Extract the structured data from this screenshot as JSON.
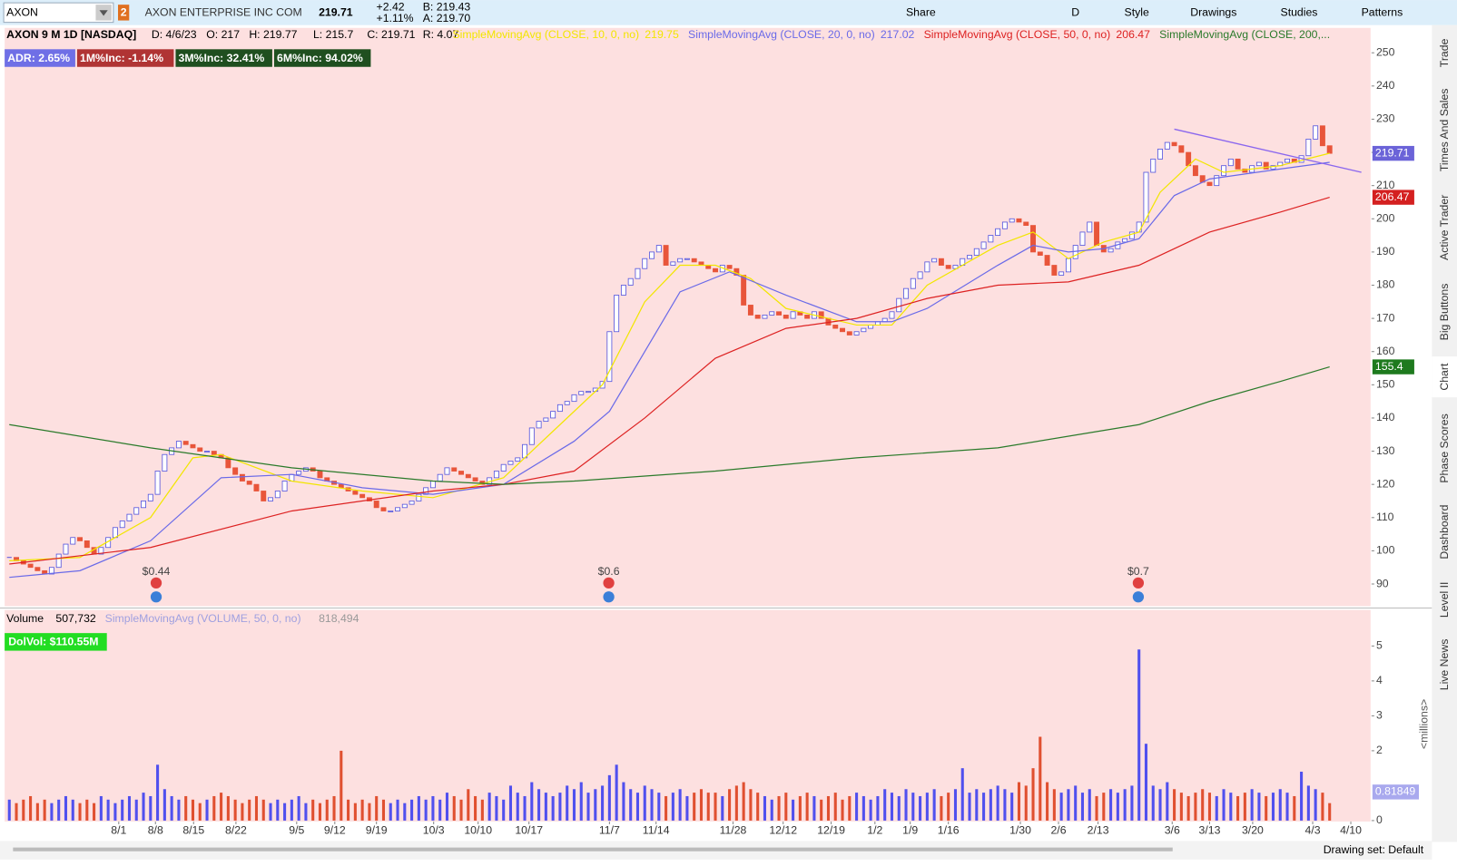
{
  "toolbar": {
    "symbol": "AXON",
    "link": "2",
    "company": "AXON ENTERPRISE INC COM",
    "last": "219.71",
    "change": "+2.42",
    "change_pct": "+1.11%",
    "bid": "B: 219.43",
    "ask": "A: 219.70",
    "buttons": [
      "Share",
      "D",
      "Style",
      "Drawings",
      "Studies",
      "Patterns"
    ]
  },
  "sidebar_tabs": [
    "Trade",
    "Times And Sales",
    "Active Trader",
    "Big Buttons",
    "Chart",
    "Phase Scores",
    "Dashboard",
    "Level II",
    "Live News"
  ],
  "price_header": {
    "title": "AXON 9 M 1D [NASDAQ]",
    "date": "D: 4/6/23",
    "open": "O: 217",
    "high": "H: 219.77",
    "low": "L: 215.7",
    "close": "C: 219.71",
    "range": "R: 4.07",
    "study_values": [
      "219.75",
      "217.02",
      "206.47"
    ]
  },
  "badges": [
    {
      "text": "ADR: 2.65%",
      "color": "#6f6fe6"
    },
    {
      "text": "1M%Inc: -1.14%",
      "color": "#b03434"
    },
    {
      "text": "3M%Inc: 32.41%",
      "color": "#1f4f1f"
    },
    {
      "text": "6M%Inc: 94.02%",
      "color": "#1f4f1f"
    }
  ],
  "volume_header": {
    "title": "Volume",
    "value": "507,732",
    "study": "SimpleMovingAvg (VOLUME, 50, 0, no)",
    "study_value": "818,494",
    "dolvol": "DolVol: $110.55M"
  },
  "status": "Drawing set: Default",
  "chart_data": [
    {
      "type": "candlestick",
      "closes": [
        98,
        97,
        96,
        95,
        94,
        93,
        95,
        99,
        102,
        104,
        103,
        101,
        99,
        101,
        104,
        107,
        109,
        111,
        113,
        115,
        117,
        124,
        129,
        131,
        133,
        132,
        131,
        130,
        130,
        129,
        128,
        125,
        123,
        121,
        120,
        118,
        115,
        116,
        118,
        121,
        123,
        124,
        125,
        124,
        122,
        121,
        120,
        119,
        118,
        117,
        116,
        115,
        113,
        112,
        112,
        113,
        114,
        115,
        117,
        119,
        121,
        123,
        125,
        124,
        123,
        122,
        121,
        120,
        122,
        124,
        126,
        127,
        128,
        132,
        137,
        139,
        140,
        142,
        144,
        145,
        147,
        148,
        148,
        149,
        151,
        166,
        177,
        180,
        182,
        185,
        188,
        190,
        192,
        186,
        187,
        188,
        188,
        187,
        186,
        185,
        184,
        186,
        185,
        183,
        174,
        171,
        170,
        171,
        172,
        171,
        170,
        172,
        171,
        170,
        172,
        170,
        168,
        167,
        166,
        165,
        166,
        167,
        168,
        169,
        170,
        172,
        176,
        179,
        182,
        184,
        187,
        188,
        186,
        185,
        186,
        188,
        189,
        191,
        193,
        195,
        197,
        199,
        200,
        199,
        198,
        190,
        189,
        186,
        183,
        184,
        188,
        192,
        196,
        199,
        192,
        190,
        191,
        193,
        194,
        196,
        199,
        214,
        218,
        221,
        223,
        222,
        220,
        216,
        213,
        211,
        210,
        213,
        216,
        218,
        215,
        214,
        216,
        217,
        215,
        216,
        217,
        218,
        217,
        219,
        224,
        228,
        222,
        219.71
      ],
      "up_color": "#5555dd",
      "down_color": "#e8553a",
      "xlim": [
        -0.66,
        192.8
      ],
      "ylim": [
        83.6,
        257.5
      ],
      "yticks": [
        90,
        100,
        110,
        120,
        130,
        140,
        150,
        160,
        170,
        180,
        190,
        200,
        210,
        220,
        230,
        240,
        250
      ],
      "series": [
        {
          "name": "SimpleMovingAvg (CLOSE, 10, 0, no)",
          "color": "#f2e600",
          "x": [
            0,
            10,
            20,
            26,
            30,
            40,
            50,
            60,
            70,
            80,
            84,
            90,
            95,
            100,
            105,
            110,
            120,
            125,
            130,
            140,
            145,
            150,
            155,
            160,
            163,
            168,
            172,
            180,
            187
          ],
          "values": [
            97,
            98,
            110,
            128,
            129,
            121,
            118,
            116,
            122,
            142,
            150,
            175,
            186,
            186,
            182,
            173,
            168,
            168,
            180,
            192,
            196,
            188,
            193,
            196,
            208,
            218,
            214,
            216,
            219.75
          ]
        },
        {
          "name": "SimpleMovingAvg (CLOSE, 20, 0, no)",
          "color": "#6a6ae8",
          "x": [
            0,
            10,
            20,
            30,
            40,
            50,
            60,
            70,
            80,
            85,
            90,
            95,
            102,
            110,
            120,
            125,
            130,
            140,
            145,
            150,
            155,
            160,
            165,
            170,
            180,
            187
          ],
          "values": [
            92,
            94,
            103,
            122,
            123,
            119,
            117,
            120,
            133,
            142,
            160,
            178,
            184,
            177,
            169,
            169,
            173,
            186,
            192,
            190,
            191,
            194,
            207,
            212,
            215,
            217.02
          ]
        },
        {
          "name": "SimpleMovingAvg (CLOSE, 50, 0, no)",
          "color": "#dd2222",
          "x": [
            0,
            20,
            40,
            60,
            70,
            80,
            90,
            100,
            110,
            120,
            130,
            140,
            150,
            160,
            170,
            180,
            187
          ],
          "values": [
            96,
            101,
            112,
            118,
            120,
            124,
            140,
            158,
            167,
            170,
            176,
            180,
            181,
            186,
            196,
            202,
            206.47
          ]
        },
        {
          "name": "SimpleMovingAvg (CLOSE, 200,...",
          "color": "#2a7a2a",
          "x": [
            0,
            20,
            40,
            60,
            70,
            80,
            100,
            120,
            140,
            160,
            170,
            180,
            187
          ],
          "values": [
            138,
            131,
            125,
            121,
            120,
            121,
            124,
            128,
            131,
            138,
            145,
            151,
            155.4
          ]
        }
      ],
      "price_tags": [
        {
          "value": 219.71,
          "color": "#6b63d8"
        },
        {
          "value": 206.47,
          "color": "#d42020"
        },
        {
          "value": 155.4,
          "color": "#1e7a1e"
        }
      ],
      "trendline": {
        "x": [
          165,
          191.5
        ],
        "values": [
          227,
          214
        ],
        "color": "#8a66ee"
      },
      "events": [
        {
          "x": 20.8,
          "label": "$0.44"
        },
        {
          "x": 84.9,
          "label": "$0.6"
        },
        {
          "x": 159.9,
          "label": "$0.7"
        }
      ],
      "xticks": [
        {
          "value": 15.5,
          "label": "8/1"
        },
        {
          "value": 20.7,
          "label": "8/8"
        },
        {
          "value": 26.1,
          "label": "8/15"
        },
        {
          "value": 32.1,
          "label": "8/22"
        },
        {
          "value": 40.7,
          "label": "9/5"
        },
        {
          "value": 46.1,
          "label": "9/12"
        },
        {
          "value": 52,
          "label": "9/19"
        },
        {
          "value": 60.1,
          "label": "10/3"
        },
        {
          "value": 66.4,
          "label": "10/10"
        },
        {
          "value": 73.6,
          "label": "10/17"
        },
        {
          "value": 85,
          "label": "11/7"
        },
        {
          "value": 91.6,
          "label": "11/14"
        },
        {
          "value": 102.5,
          "label": "11/28"
        },
        {
          "value": 109.6,
          "label": "12/12"
        },
        {
          "value": 116.4,
          "label": "12/19"
        },
        {
          "value": 122.6,
          "label": "1/2"
        },
        {
          "value": 127.6,
          "label": "1/9"
        },
        {
          "value": 133,
          "label": "1/16"
        },
        {
          "value": 143.2,
          "label": "1/30"
        },
        {
          "value": 148.6,
          "label": "2/6"
        },
        {
          "value": 154.2,
          "label": "2/13"
        },
        {
          "value": 164.7,
          "label": "3/6"
        },
        {
          "value": 170,
          "label": "3/13"
        },
        {
          "value": 176.1,
          "label": "3/20"
        },
        {
          "value": 184.6,
          "label": "4/3"
        },
        {
          "value": 190,
          "label": "4/10"
        }
      ]
    },
    {
      "type": "bar",
      "values": [
        0.6,
        0.5,
        0.6,
        0.7,
        0.5,
        0.6,
        0.5,
        0.6,
        0.7,
        0.6,
        0.5,
        0.6,
        0.5,
        0.7,
        0.6,
        0.5,
        0.6,
        0.7,
        0.6,
        0.8,
        0.7,
        1.6,
        0.9,
        0.7,
        0.6,
        0.7,
        0.6,
        0.5,
        0.6,
        0.7,
        0.8,
        0.7,
        0.6,
        0.5,
        0.6,
        0.7,
        0.6,
        0.5,
        0.6,
        0.5,
        0.6,
        0.7,
        0.5,
        0.6,
        0.5,
        0.6,
        0.7,
        2.0,
        0.6,
        0.5,
        0.6,
        0.5,
        0.7,
        0.6,
        0.5,
        0.6,
        0.5,
        0.6,
        0.7,
        0.6,
        0.7,
        0.6,
        0.8,
        0.7,
        0.6,
        0.9,
        0.7,
        0.6,
        0.8,
        0.7,
        0.6,
        1.0,
        0.8,
        0.7,
        1.1,
        0.9,
        0.8,
        0.7,
        0.8,
        1.0,
        0.9,
        1.1,
        0.8,
        0.9,
        1.0,
        1.3,
        1.6,
        1.1,
        0.9,
        0.8,
        1.0,
        0.9,
        0.8,
        0.7,
        0.8,
        0.9,
        0.7,
        0.8,
        0.9,
        0.8,
        0.8,
        0.7,
        0.9,
        1.0,
        1.1,
        0.9,
        0.8,
        0.7,
        0.6,
        0.7,
        0.8,
        0.6,
        0.7,
        0.8,
        0.7,
        0.6,
        0.7,
        0.8,
        0.6,
        0.7,
        0.8,
        0.7,
        0.6,
        0.7,
        0.9,
        0.8,
        0.7,
        0.9,
        0.8,
        0.7,
        0.8,
        0.9,
        0.7,
        0.8,
        0.9,
        1.5,
        0.8,
        0.9,
        0.8,
        0.9,
        1.0,
        0.9,
        0.8,
        1.1,
        1.0,
        1.5,
        2.4,
        1.1,
        0.9,
        0.8,
        0.9,
        1.0,
        0.8,
        0.9,
        0.7,
        0.8,
        0.9,
        0.8,
        0.9,
        1.0,
        4.9,
        2.2,
        1.0,
        0.9,
        1.1,
        0.9,
        0.8,
        0.7,
        0.8,
        0.9,
        0.8,
        0.7,
        0.9,
        0.8,
        0.7,
        0.8,
        0.9,
        0.8,
        0.7,
        0.8,
        0.9,
        0.8,
        0.7,
        1.4,
        1.0,
        0.9,
        0.8,
        0.5
      ],
      "ylabel": "<millions>",
      "xlim": [
        -0.66,
        192.8
      ],
      "ylim": [
        0,
        5.29
      ],
      "yticks": [
        0,
        2,
        3,
        4,
        5
      ],
      "avg_tag": {
        "value": 0.81849,
        "color": "#a9a9ee"
      }
    }
  ]
}
